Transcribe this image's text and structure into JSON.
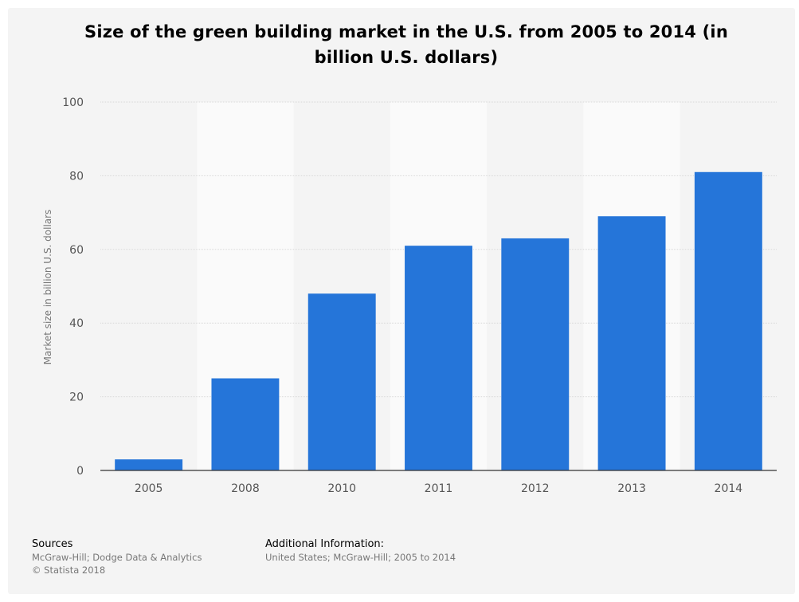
{
  "chart_data": {
    "type": "bar",
    "title": "Size of the green building market in the U.S. from 2005 to 2014 (in billion U.S. dollars)",
    "title_lines": [
      "Size of the green building market in the U.S. from 2005 to 2014 (in",
      "billion U.S. dollars)"
    ],
    "categories": [
      "2005",
      "2008",
      "2010",
      "2011",
      "2012",
      "2013",
      "2014"
    ],
    "values": [
      3,
      25,
      48,
      61,
      63,
      69,
      81
    ],
    "ylabel": "Market size in billion U.S. dollars",
    "xlabel": "",
    "ylim": [
      0,
      100
    ],
    "yticks": [
      0,
      20,
      40,
      60,
      80,
      100
    ],
    "grid": true,
    "bar_color": "#2575d9"
  },
  "footer": {
    "sources_heading": "Sources",
    "sources_line1": "McGraw-Hill; Dodge Data & Analytics",
    "sources_line2": "© Statista 2018",
    "additional_heading": "Additional Information:",
    "additional_line1": "United States; McGraw-Hill; 2005 to 2014"
  }
}
